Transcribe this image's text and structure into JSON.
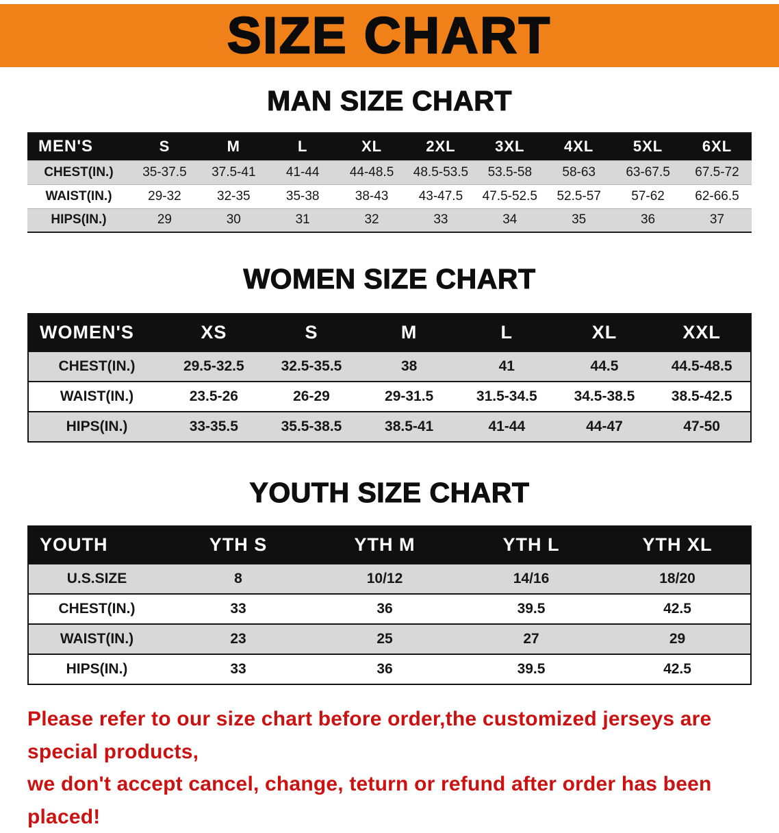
{
  "colors": {
    "banner_bg": "#F08119",
    "header_bg": "#101010",
    "row_alt_bg": "#D8D8D8",
    "disclaimer_text": "#CC1111"
  },
  "banner": {
    "title": "SIZE CHART"
  },
  "men": {
    "heading": "MAN SIZE CHART",
    "table": {
      "header": [
        "MEN'S",
        "S",
        "M",
        "L",
        "XL",
        "2XL",
        "3XL",
        "4XL",
        "5XL",
        "6XL"
      ],
      "rows": [
        {
          "label": "CHEST(IN.)",
          "values": [
            "35-37.5",
            "37.5-41",
            "41-44",
            "44-48.5",
            "48.5-53.5",
            "53.5-58",
            "58-63",
            "63-67.5",
            "67.5-72"
          ]
        },
        {
          "label": "WAIST(IN.)",
          "values": [
            "29-32",
            "32-35",
            "35-38",
            "38-43",
            "43-47.5",
            "47.5-52.5",
            "52.5-57",
            "57-62",
            "62-66.5"
          ]
        },
        {
          "label": "HIPS(IN.)",
          "values": [
            "29",
            "30",
            "31",
            "32",
            "33",
            "34",
            "35",
            "36",
            "37"
          ]
        }
      ]
    }
  },
  "women": {
    "heading": "WOMEN SIZE CHART",
    "table": {
      "header": [
        "WOMEN'S",
        "XS",
        "S",
        "M",
        "L",
        "XL",
        "XXL"
      ],
      "rows": [
        {
          "label": "CHEST(IN.)",
          "values": [
            "29.5-32.5",
            "32.5-35.5",
            "38",
            "41",
            "44.5",
            "44.5-48.5"
          ]
        },
        {
          "label": "WAIST(IN.)",
          "values": [
            "23.5-26",
            "26-29",
            "29-31.5",
            "31.5-34.5",
            "34.5-38.5",
            "38.5-42.5"
          ]
        },
        {
          "label": "HIPS(IN.)",
          "values": [
            "33-35.5",
            "35.5-38.5",
            "38.5-41",
            "41-44",
            "44-47",
            "47-50"
          ]
        }
      ]
    }
  },
  "youth": {
    "heading": "YOUTH SIZE CHART",
    "table": {
      "header": [
        "YOUTH",
        "YTH S",
        "YTH M",
        "YTH L",
        "YTH XL"
      ],
      "rows": [
        {
          "label": "U.S.SIZE",
          "values": [
            "8",
            "10/12",
            "14/16",
            "18/20"
          ]
        },
        {
          "label": "CHEST(IN.)",
          "values": [
            "33",
            "36",
            "39.5",
            "42.5"
          ]
        },
        {
          "label": "WAIST(IN.)",
          "values": [
            "23",
            "25",
            "27",
            "29"
          ]
        },
        {
          "label": "HIPS(IN.)",
          "values": [
            "33",
            "36",
            "39.5",
            "42.5"
          ]
        }
      ]
    }
  },
  "disclaimer": {
    "line1": "Please refer to our size chart before order,the customized jerseys are special products,",
    "line2": "we don't accept cancel, change, teturn or refund after order has been placed!"
  }
}
